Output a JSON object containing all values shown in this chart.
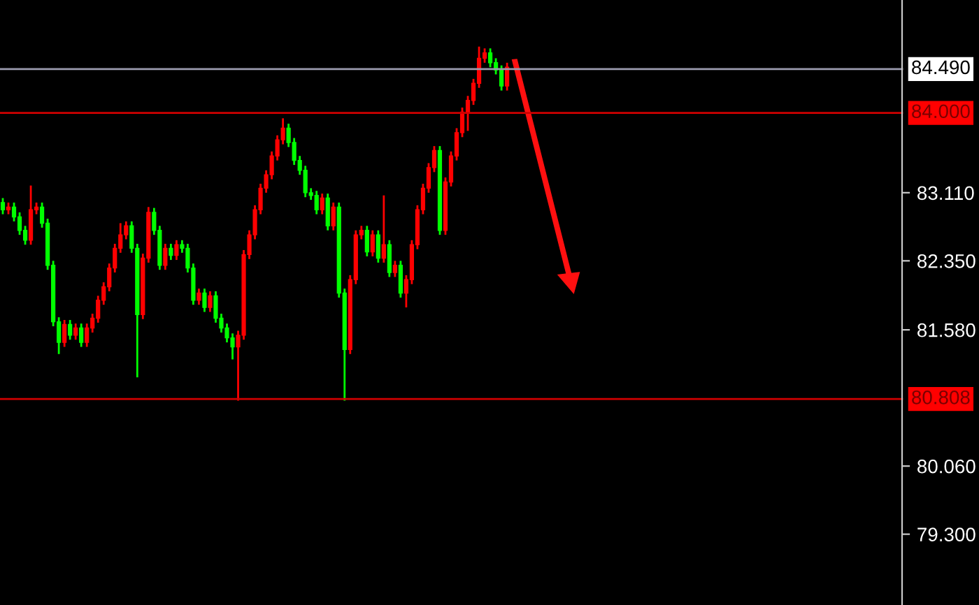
{
  "chart_data": {
    "type": "candlestick",
    "categories": [
      null,
      null,
      null,
      null,
      null,
      null,
      null,
      null,
      null,
      null,
      null,
      null,
      null,
      null,
      null,
      null,
      null,
      null,
      null,
      null,
      null,
      null,
      null,
      null,
      null,
      null,
      null,
      null,
      null,
      null,
      null,
      null,
      null,
      null,
      null,
      null,
      null,
      null,
      null,
      null,
      null,
      null,
      null,
      null,
      null,
      null,
      null,
      null,
      null,
      null,
      null,
      null,
      null,
      null,
      null,
      null,
      null,
      null,
      null,
      null,
      null,
      null,
      null,
      null,
      null,
      null,
      null,
      null,
      null,
      null,
      null,
      null,
      null,
      null,
      null,
      null,
      null,
      null,
      null,
      null,
      null,
      null,
      null,
      null,
      null,
      null,
      null,
      null,
      null,
      null,
      null,
      null,
      null,
      null,
      null,
      null,
      null,
      null,
      null,
      null,
      null,
      null,
      null,
      null,
      null,
      null,
      null,
      null,
      null,
      null,
      null,
      null,
      null,
      null,
      null,
      null,
      null,
      null,
      null,
      null,
      null,
      null,
      null,
      null,
      null,
      null,
      null,
      null,
      null,
      null,
      null,
      null,
      null,
      null,
      null,
      null,
      null,
      null,
      null,
      null,
      null,
      null,
      null,
      null,
      null,
      null,
      null,
      null,
      null,
      null,
      null,
      null,
      null,
      null,
      null,
      null,
      null,
      null,
      null,
      null,
      null
    ],
    "ohlc": [
      [
        83.0,
        83.05,
        82.87,
        82.92
      ],
      [
        82.92,
        83.0,
        82.87,
        82.95
      ],
      [
        82.95,
        83.0,
        82.79,
        82.84
      ],
      [
        82.84,
        82.89,
        82.64,
        82.69
      ],
      [
        82.69,
        82.74,
        82.53,
        82.58
      ],
      [
        82.58,
        83.19,
        82.53,
        82.92
      ],
      [
        82.92,
        83.0,
        82.87,
        82.95
      ],
      [
        82.95,
        83.0,
        82.72,
        82.77
      ],
      [
        82.77,
        82.82,
        82.25,
        82.3
      ],
      [
        82.3,
        82.35,
        81.62,
        81.67
      ],
      [
        81.67,
        81.72,
        81.31,
        81.44
      ],
      [
        81.44,
        81.69,
        81.39,
        81.64
      ],
      [
        81.64,
        81.69,
        81.47,
        81.52
      ],
      [
        81.52,
        81.65,
        81.47,
        81.6
      ],
      [
        81.6,
        81.65,
        81.39,
        81.44
      ],
      [
        81.44,
        81.65,
        81.39,
        81.6
      ],
      [
        81.6,
        81.76,
        81.55,
        81.71
      ],
      [
        81.71,
        81.96,
        81.66,
        81.91
      ],
      [
        81.91,
        82.11,
        81.86,
        82.06
      ],
      [
        82.06,
        82.32,
        82.01,
        82.27
      ],
      [
        82.27,
        82.54,
        82.22,
        82.49
      ],
      [
        82.49,
        82.77,
        82.44,
        82.64
      ],
      [
        82.64,
        82.79,
        82.59,
        82.74
      ],
      [
        82.74,
        82.79,
        82.44,
        82.49
      ],
      [
        82.49,
        82.54,
        81.05,
        81.75
      ],
      [
        81.75,
        82.43,
        81.7,
        82.38
      ],
      [
        82.38,
        82.95,
        82.33,
        82.89
      ],
      [
        82.89,
        82.94,
        82.64,
        82.69
      ],
      [
        82.69,
        82.74,
        82.25,
        82.3
      ],
      [
        82.3,
        82.54,
        82.25,
        82.49
      ],
      [
        82.49,
        82.54,
        82.36,
        82.41
      ],
      [
        82.41,
        82.58,
        82.36,
        82.53
      ],
      [
        82.53,
        82.58,
        82.44,
        82.49
      ],
      [
        82.49,
        82.54,
        82.22,
        82.27
      ],
      [
        82.27,
        82.32,
        81.86,
        81.91
      ],
      [
        81.91,
        82.04,
        81.86,
        81.99
      ],
      [
        81.99,
        82.04,
        81.78,
        81.83
      ],
      [
        81.83,
        82.01,
        81.78,
        81.96
      ],
      [
        81.96,
        82.01,
        81.66,
        81.71
      ],
      [
        81.71,
        81.76,
        81.55,
        81.6
      ],
      [
        81.6,
        81.65,
        81.44,
        81.49
      ],
      [
        81.49,
        81.54,
        81.25,
        81.39
      ],
      [
        81.39,
        81.57,
        80.79,
        81.52
      ],
      [
        81.52,
        82.47,
        81.47,
        82.42
      ],
      [
        82.42,
        82.69,
        82.37,
        82.64
      ],
      [
        82.64,
        82.97,
        82.59,
        82.92
      ],
      [
        82.92,
        83.21,
        82.87,
        83.16
      ],
      [
        83.16,
        83.36,
        83.11,
        83.31
      ],
      [
        83.31,
        83.57,
        83.26,
        83.52
      ],
      [
        83.52,
        83.75,
        83.47,
        83.7
      ],
      [
        83.7,
        83.94,
        83.65,
        83.83
      ],
      [
        83.83,
        83.88,
        83.62,
        83.67
      ],
      [
        83.67,
        83.72,
        83.42,
        83.47
      ],
      [
        83.47,
        83.52,
        83.31,
        83.36
      ],
      [
        83.36,
        83.41,
        83.06,
        83.11
      ],
      [
        83.11,
        83.16,
        83.03,
        83.08
      ],
      [
        83.08,
        83.13,
        82.87,
        82.92
      ],
      [
        82.92,
        83.1,
        82.87,
        83.05
      ],
      [
        83.05,
        83.1,
        82.69,
        82.74
      ],
      [
        82.74,
        83.0,
        82.69,
        82.95
      ],
      [
        82.95,
        83.0,
        81.94,
        81.99
      ],
      [
        81.99,
        82.04,
        80.79,
        81.36
      ],
      [
        81.36,
        82.19,
        81.31,
        82.14
      ],
      [
        82.14,
        82.69,
        82.09,
        82.64
      ],
      [
        82.64,
        82.74,
        82.59,
        82.69
      ],
      [
        82.69,
        82.74,
        82.4,
        82.45
      ],
      [
        82.45,
        82.69,
        82.4,
        82.64
      ],
      [
        82.64,
        82.69,
        82.33,
        82.38
      ],
      [
        82.38,
        83.08,
        82.33,
        82.53
      ],
      [
        82.53,
        82.58,
        82.17,
        82.22
      ],
      [
        82.22,
        82.35,
        82.17,
        82.3
      ],
      [
        82.3,
        82.35,
        81.94,
        81.99
      ],
      [
        81.99,
        82.19,
        81.83,
        82.14
      ],
      [
        82.14,
        82.58,
        82.09,
        82.53
      ],
      [
        82.53,
        82.97,
        82.48,
        82.92
      ],
      [
        82.92,
        83.21,
        82.87,
        83.16
      ],
      [
        83.16,
        83.44,
        83.11,
        83.39
      ],
      [
        83.39,
        83.63,
        83.34,
        83.58
      ],
      [
        83.58,
        83.63,
        82.64,
        82.69
      ],
      [
        82.69,
        83.28,
        82.64,
        83.23
      ],
      [
        83.23,
        83.57,
        83.18,
        83.52
      ],
      [
        83.52,
        83.83,
        83.47,
        83.78
      ],
      [
        83.78,
        84.06,
        83.73,
        84.01
      ],
      [
        84.01,
        84.19,
        83.8,
        84.14
      ],
      [
        84.14,
        84.38,
        84.09,
        84.33
      ],
      [
        84.33,
        84.74,
        84.28,
        84.61
      ],
      [
        84.61,
        84.72,
        84.56,
        84.67
      ],
      [
        84.67,
        84.72,
        84.51,
        84.56
      ],
      [
        84.56,
        84.61,
        84.43,
        84.48
      ],
      [
        84.48,
        84.53,
        84.25,
        84.3
      ],
      [
        84.3,
        84.56,
        84.25,
        84.51
      ],
      null,
      null,
      null,
      null,
      null,
      null,
      null,
      null,
      null,
      null,
      null,
      null,
      null,
      null,
      null,
      null,
      null,
      null,
      null,
      null,
      null,
      null,
      null,
      null,
      null,
      null,
      null,
      null,
      null,
      null,
      null,
      null,
      null,
      null,
      null,
      null,
      null,
      null,
      null,
      null,
      null,
      null,
      null,
      null,
      null,
      null,
      null,
      null,
      null,
      null,
      null,
      null,
      null,
      null,
      null,
      null,
      null,
      null,
      null,
      null,
      null,
      null,
      null,
      null,
      null,
      null,
      null,
      null,
      null,
      null
    ],
    "colors": [
      "#00ff00",
      "#ff0000",
      "#00ff00",
      "#00ff00",
      "#00ff00",
      "#ff0000",
      "#ff0000",
      "#00ff00",
      "#00ff00",
      "#00ff00",
      "#00ff00",
      "#ff0000",
      "#00ff00",
      "#ff0000",
      "#00ff00",
      "#ff0000",
      "#ff0000",
      "#ff0000",
      "#ff0000",
      "#ff0000",
      "#ff0000",
      "#ff0000",
      "#ff0000",
      "#00ff00",
      "#00ff00",
      "#ff0000",
      "#ff0000",
      "#00ff00",
      "#00ff00",
      "#ff0000",
      "#00ff00",
      "#ff0000",
      "#00ff00",
      "#00ff00",
      "#00ff00",
      "#ff0000",
      "#00ff00",
      "#ff0000",
      "#00ff00",
      "#00ff00",
      "#00ff00",
      "#00ff00",
      "#ff0000",
      "#ff0000",
      "#ff0000",
      "#ff0000",
      "#ff0000",
      "#ff0000",
      "#ff0000",
      "#ff0000",
      "#ff0000",
      "#00ff00",
      "#00ff00",
      "#00ff00",
      "#00ff00",
      "#00ff00",
      "#00ff00",
      "#ff0000",
      "#00ff00",
      "#ff0000",
      "#00ff00",
      "#00ff00",
      "#ff0000",
      "#ff0000",
      "#ff0000",
      "#00ff00",
      "#ff0000",
      "#00ff00",
      "#ff0000",
      "#00ff00",
      "#ff0000",
      "#00ff00",
      "#ff0000",
      "#ff0000",
      "#ff0000",
      "#ff0000",
      "#ff0000",
      "#ff0000",
      "#00ff00",
      "#ff0000",
      "#ff0000",
      "#ff0000",
      "#ff0000",
      "#ff0000",
      "#ff0000",
      "#ff0000",
      "#ff0000",
      "#00ff00",
      "#00ff00",
      "#00ff00",
      "#ff0000",
      null,
      null,
      null,
      null,
      null,
      null,
      null,
      null,
      null,
      null,
      null,
      null,
      null,
      null,
      null,
      null,
      null,
      null,
      null,
      null,
      null,
      null,
      null,
      null,
      null,
      null,
      null,
      null,
      null,
      null,
      null,
      null,
      null,
      null,
      null,
      null,
      null,
      null,
      null,
      null,
      null,
      null,
      null,
      null,
      null,
      null,
      null,
      null,
      null,
      null,
      null,
      null,
      null,
      null,
      null,
      null,
      null,
      null,
      null,
      null,
      null,
      null,
      null,
      null,
      null,
      null,
      null,
      null,
      null,
      null
    ],
    "ylim": [
      78.51,
      85.26
    ],
    "yticks": [
      {
        "value": 83.11,
        "label": "83.110"
      },
      {
        "value": 82.35,
        "label": "82.350"
      },
      {
        "value": 81.58,
        "label": "81.580"
      },
      {
        "value": 80.06,
        "label": "80.060"
      },
      {
        "value": 79.3,
        "label": "79.300"
      }
    ],
    "ref_lines": [
      {
        "axis": "y",
        "value": 84.49,
        "label": "84.490",
        "color": "#9a9aae"
      },
      {
        "axis": "y",
        "value": 84.0,
        "label": "84.000",
        "color": "#d00000"
      },
      {
        "axis": "y",
        "value": 80.808,
        "label": "80.808",
        "color": "#d00000"
      }
    ],
    "grid": false
  }
}
